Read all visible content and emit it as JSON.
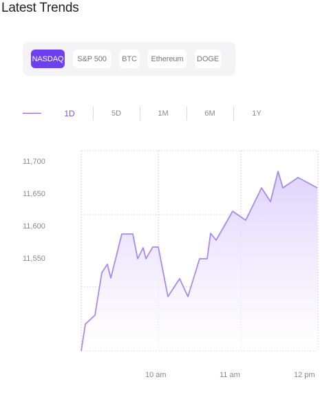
{
  "title": "Latest Trends",
  "tickers": [
    {
      "label": "NASDAQ",
      "active": true
    },
    {
      "label": "S&P 500",
      "active": false
    },
    {
      "label": "BTC",
      "active": false
    },
    {
      "label": "Ethereum",
      "active": false
    },
    {
      "label": "DOGE",
      "active": false
    }
  ],
  "ranges": [
    {
      "label": "1D",
      "active": true
    },
    {
      "label": "5D",
      "active": false
    },
    {
      "label": "1M",
      "active": false
    },
    {
      "label": "6M",
      "active": false
    },
    {
      "label": "1Y",
      "active": false
    }
  ],
  "colors": {
    "accent": "#6e3ff2",
    "line": "#a58af2",
    "grid": "#d8d0f5"
  },
  "chart_data": {
    "type": "area",
    "series_name": "",
    "y_ticks": [
      "11,700",
      "11,650",
      "11,600",
      "11,550"
    ],
    "x_ticks": [
      "10 am",
      "11 am",
      "12 pm"
    ],
    "grid": true
  }
}
